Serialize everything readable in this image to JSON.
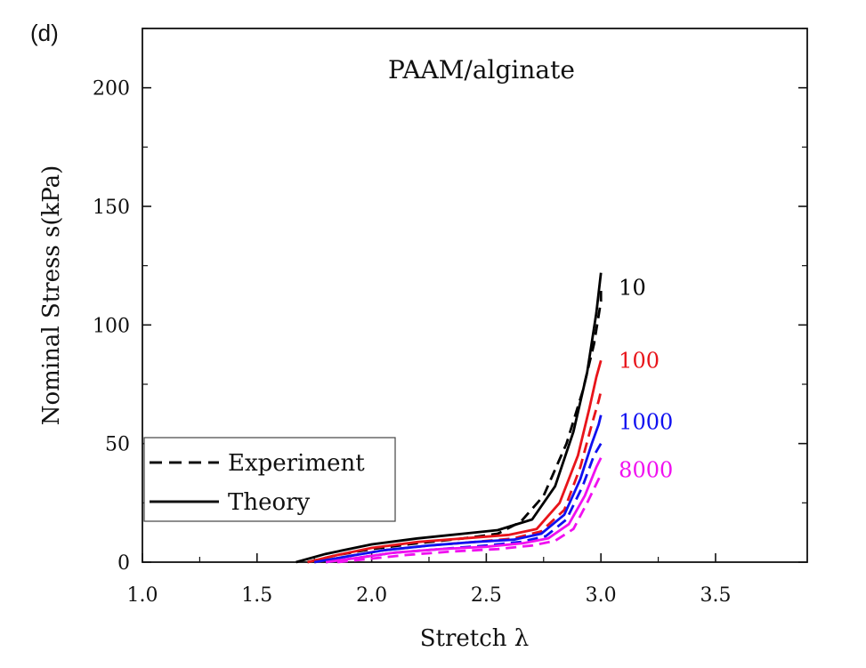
{
  "panel_label": "(d)",
  "chart_data": {
    "type": "line",
    "title": "PAAM/alginate",
    "xlabel": "Stretch λ",
    "ylabel": "Nominal Stress s(kPa)",
    "xlim": [
      1.0,
      3.9
    ],
    "ylim": [
      0,
      225
    ],
    "xticks": [
      1.0,
      1.5,
      2.0,
      2.5,
      3.0,
      3.5
    ],
    "xtick_labels": [
      "1.0",
      "1.5",
      "2.0",
      "2.5",
      "3.0",
      "3.5"
    ],
    "yticks": [
      0,
      50,
      100,
      150,
      200
    ],
    "ytick_labels": [
      "0",
      "50",
      "100",
      "150",
      "200"
    ],
    "grid": false,
    "legend": {
      "placement": "bottom-left",
      "entries": [
        {
          "label": "Experiment",
          "style": "dashed"
        },
        {
          "label": "Theory",
          "style": "solid"
        }
      ]
    },
    "series": [
      {
        "name": "10",
        "color": "#000000",
        "theory": {
          "x": [
            1.67,
            1.8,
            2.0,
            2.2,
            2.4,
            2.55,
            2.7,
            2.8,
            2.88,
            2.94,
            2.98,
            3.0
          ],
          "y": [
            0,
            3.5,
            7.5,
            10,
            12,
            13.5,
            18,
            32,
            55,
            80,
            105,
            122
          ]
        },
        "experiment": {
          "x": [
            1.72,
            1.85,
            2.0,
            2.2,
            2.4,
            2.55,
            2.65,
            2.75,
            2.85,
            2.92,
            2.97,
            3.0,
            3.0
          ],
          "y": [
            0,
            3,
            5.5,
            8,
            10,
            12,
            17,
            28,
            50,
            72,
            92,
            110,
            115
          ]
        }
      },
      {
        "name": "100",
        "color": "#e8141a",
        "theory": {
          "x": [
            1.72,
            1.85,
            2.0,
            2.2,
            2.4,
            2.6,
            2.72,
            2.82,
            2.9,
            2.95,
            2.98,
            3.0
          ],
          "y": [
            0,
            3,
            6,
            8.5,
            10,
            11.5,
            14,
            25,
            45,
            65,
            78,
            85
          ]
        },
        "experiment": {
          "x": [
            1.75,
            1.9,
            2.05,
            2.25,
            2.45,
            2.62,
            2.74,
            2.84,
            2.91,
            2.96,
            2.99,
            3.0
          ],
          "y": [
            0,
            2.5,
            5,
            7,
            8.5,
            10,
            13,
            22,
            40,
            58,
            68,
            72
          ]
        }
      },
      {
        "name": "1000",
        "color": "#1010f0",
        "theory": {
          "x": [
            1.75,
            1.9,
            2.05,
            2.25,
            2.45,
            2.62,
            2.74,
            2.84,
            2.91,
            2.96,
            2.99,
            3.0
          ],
          "y": [
            0,
            2.5,
            5,
            7,
            8.5,
            9.5,
            12,
            20,
            35,
            50,
            58,
            62
          ]
        },
        "experiment": {
          "x": [
            1.8,
            1.95,
            2.1,
            2.3,
            2.5,
            2.65,
            2.76,
            2.85,
            2.92,
            2.97,
            3.0
          ],
          "y": [
            0,
            2,
            4,
            5.5,
            7,
            8.5,
            11,
            18,
            32,
            45,
            50
          ]
        }
      },
      {
        "name": "8000",
        "color": "#f010f0",
        "theory": {
          "x": [
            1.8,
            1.95,
            2.1,
            2.3,
            2.5,
            2.66,
            2.77,
            2.86,
            2.93,
            2.98,
            3.0
          ],
          "y": [
            0,
            2,
            4,
            5.5,
            6.5,
            8,
            10,
            16,
            28,
            40,
            44
          ]
        },
        "experiment": {
          "x": [
            1.85,
            2.0,
            2.15,
            2.35,
            2.55,
            2.7,
            2.8,
            2.88,
            2.94,
            2.98,
            3.0
          ],
          "y": [
            0,
            1.5,
            3,
            4.5,
            5.5,
            7,
            9,
            14,
            25,
            33,
            37
          ]
        }
      }
    ]
  }
}
